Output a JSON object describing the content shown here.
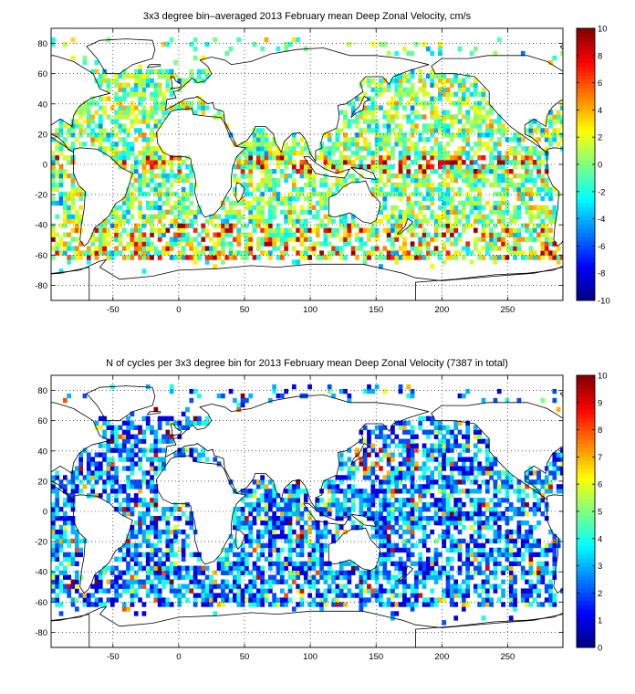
{
  "chart_data": [
    {
      "type": "heatmap",
      "title": "3x3 degree bin–averaged 2013 February mean Deep Zonal Velocity, cm/s",
      "xlim": [
        -97,
        292
      ],
      "ylim": [
        -90,
        90
      ],
      "xticks": [
        -50,
        0,
        50,
        100,
        150,
        200,
        250
      ],
      "yticks": [
        -80,
        -60,
        -40,
        -20,
        0,
        20,
        40,
        60,
        80
      ],
      "grid": true,
      "colorbar": {
        "min": -10,
        "max": 10,
        "ticks": [
          10,
          8,
          6,
          4,
          2,
          0,
          -2,
          -4,
          -6,
          -8,
          -10
        ],
        "colormap": "jet"
      },
      "bin_size_deg": 3,
      "values_note": "3x3 degree bins, colour = mean zonal velocity in cm/s"
    },
    {
      "type": "heatmap",
      "title": "N of cycles per 3x3 degree bin for 2013 February mean Deep Zonal Velocity (7387 in total)",
      "xlim": [
        -97,
        292
      ],
      "ylim": [
        -90,
        90
      ],
      "xticks": [
        -50,
        0,
        50,
        100,
        150,
        200,
        250
      ],
      "yticks": [
        -80,
        -60,
        -40,
        -20,
        0,
        20,
        40,
        60,
        80
      ],
      "grid": true,
      "colorbar": {
        "min": 0,
        "max": 10,
        "ticks": [
          10,
          9,
          8,
          7,
          6,
          5,
          4,
          3,
          2,
          1,
          0
        ],
        "colormap": "jet"
      },
      "bin_size_deg": 3,
      "total_cycles": 7387
    }
  ]
}
